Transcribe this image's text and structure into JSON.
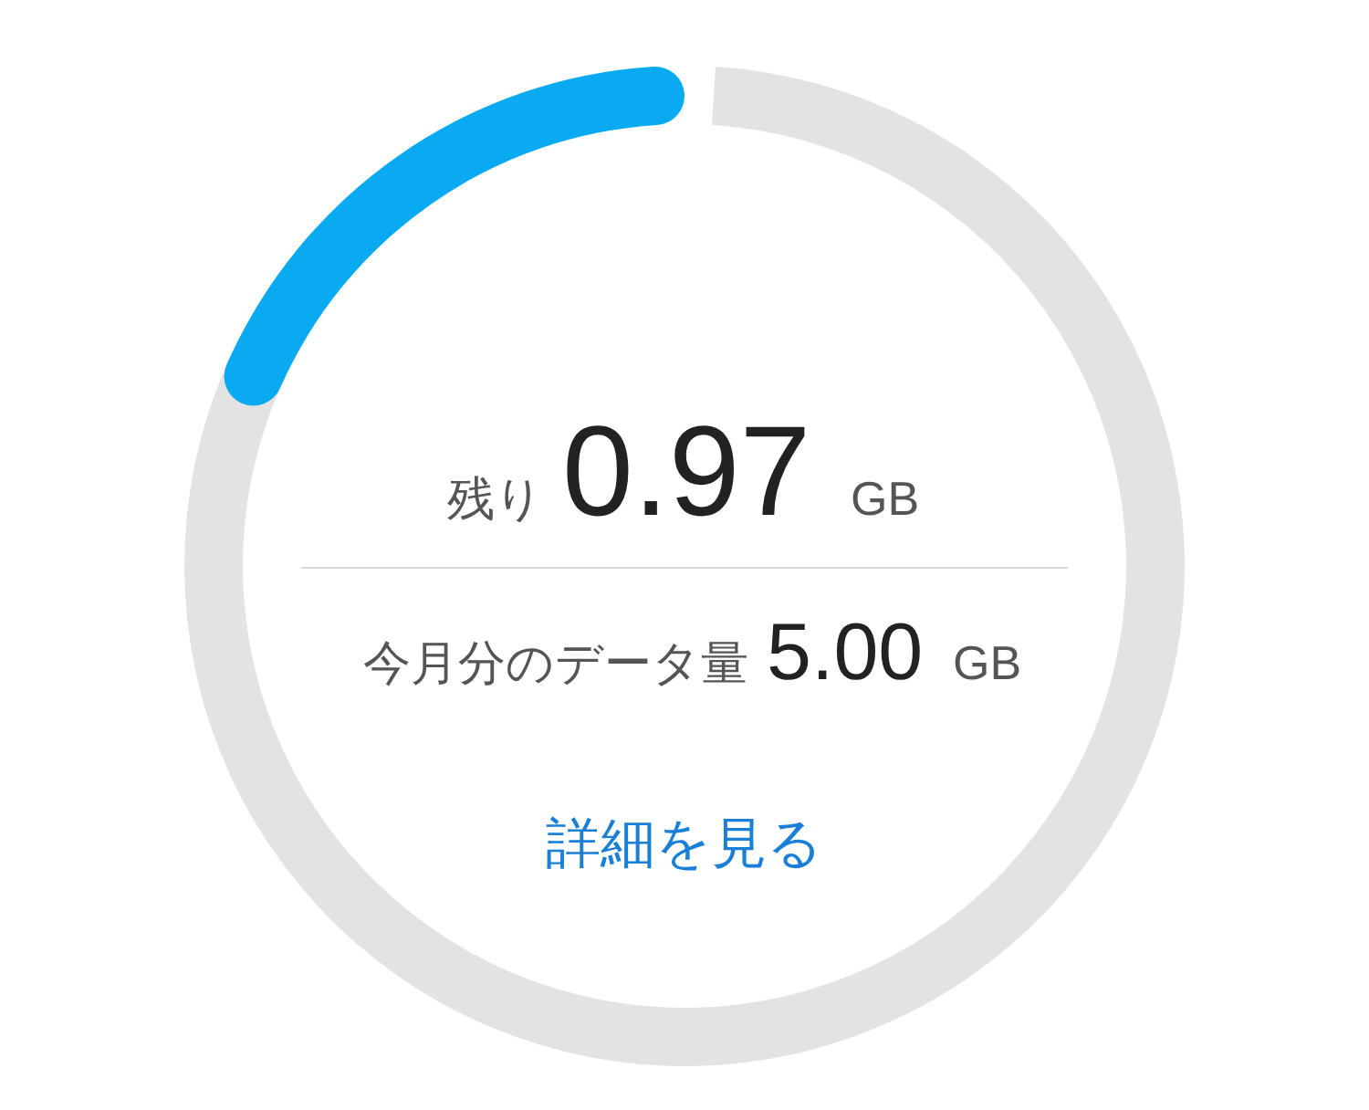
{
  "chart_data": {
    "type": "donut",
    "categories": [
      null,
      null
    ],
    "values": [
      19.4,
      80.6
    ],
    "colors": [
      "#0aaaf2",
      "#e3e3e3"
    ],
    "annotations": [
      "残り",
      "0.97",
      "GB",
      "今月分のデータ量",
      "5.00",
      "GB",
      "詳細を見る"
    ]
  }
}
